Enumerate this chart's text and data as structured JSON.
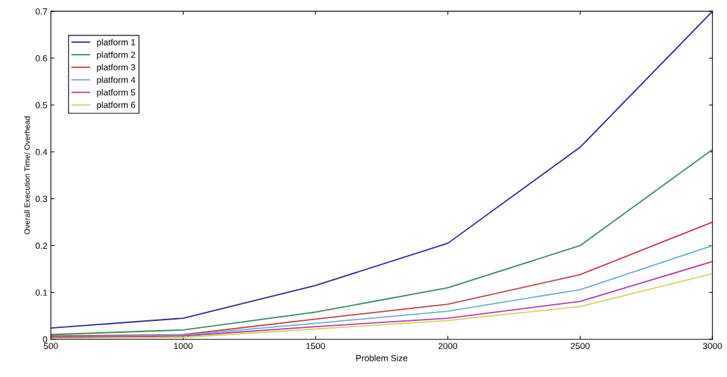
{
  "chart_data": {
    "type": "line",
    "xlabel": "Problem Size",
    "ylabel": "Overall Execution Time/ Overhead",
    "x": [
      500,
      1000,
      1500,
      2000,
      2500,
      3000
    ],
    "series": [
      {
        "name": "platform 1",
        "color": "#2a2a8a",
        "values": [
          0.024,
          0.045,
          0.115,
          0.205,
          0.41,
          0.7
        ]
      },
      {
        "name": "platform 2",
        "color": "#3a8a5a",
        "values": [
          0.01,
          0.02,
          0.058,
          0.11,
          0.2,
          0.405
        ]
      },
      {
        "name": "platform 3",
        "color": "#c0404a",
        "values": [
          0.007,
          0.01,
          0.043,
          0.075,
          0.138,
          0.25
        ]
      },
      {
        "name": "platform 4",
        "color": "#6ab0d0",
        "values": [
          0.005,
          0.009,
          0.034,
          0.06,
          0.106,
          0.2
        ]
      },
      {
        "name": "platform 5",
        "color": "#b040a0",
        "values": [
          0.004,
          0.007,
          0.027,
          0.045,
          0.081,
          0.166
        ]
      },
      {
        "name": "platform 6",
        "color": "#d8d060",
        "values": [
          0.002,
          0.004,
          0.022,
          0.04,
          0.07,
          0.14
        ]
      }
    ],
    "xlim": [
      500,
      3000
    ],
    "ylim": [
      0,
      0.7
    ],
    "xticks": [
      500,
      1000,
      1500,
      2000,
      2500,
      3000
    ],
    "yticks": [
      0,
      0.1,
      0.2,
      0.3,
      0.4,
      0.5,
      0.6,
      0.7
    ],
    "grid": false,
    "legend": "top left",
    "marker": "none",
    "line_style": "solid"
  }
}
